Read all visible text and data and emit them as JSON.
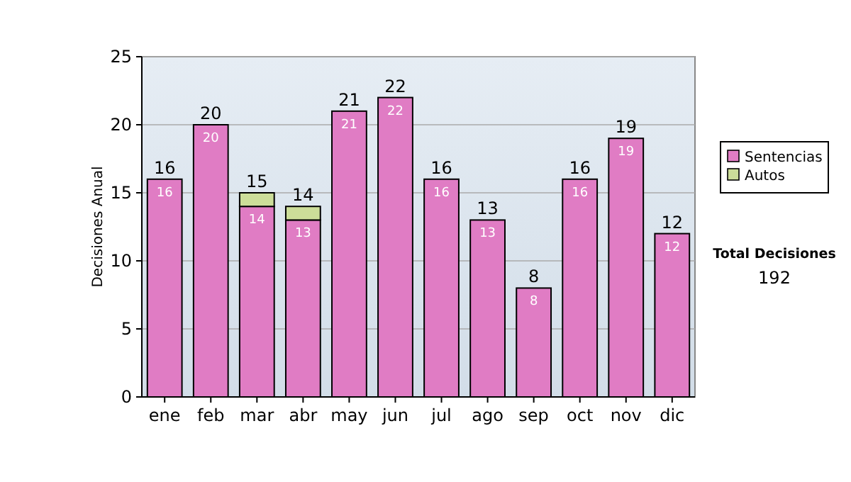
{
  "chart_data": {
    "type": "bar",
    "stacked": true,
    "ylabel": "Decisiones Anual",
    "categories": [
      "ene",
      "feb",
      "mar",
      "abr",
      "may",
      "jun",
      "jul",
      "ago",
      "sep",
      "oct",
      "nov",
      "dic"
    ],
    "series": [
      {
        "name": "Sentencias",
        "color": "#e07cc4",
        "values": [
          16,
          20,
          14,
          13,
          21,
          22,
          16,
          13,
          8,
          16,
          19,
          12
        ],
        "value_labels": [
          "16",
          "20",
          "14",
          "13",
          "21",
          "22",
          "16",
          "13",
          "8",
          "16",
          "19",
          "12"
        ]
      },
      {
        "name": "Autos",
        "color": "#ccdd99",
        "values": [
          0,
          0,
          1,
          1,
          0,
          0,
          0,
          0,
          0,
          0,
          0,
          0
        ]
      }
    ],
    "totals": [
      "16",
      "20",
      "15",
      "14",
      "21",
      "22",
      "16",
      "13",
      "8",
      "16",
      "19",
      "12"
    ],
    "ylim": [
      0,
      25
    ],
    "yticks": [
      0,
      5,
      10,
      15,
      20,
      25
    ],
    "grid": "y",
    "legend": "right",
    "annotations": [
      "Total Decisiones",
      "192"
    ]
  }
}
